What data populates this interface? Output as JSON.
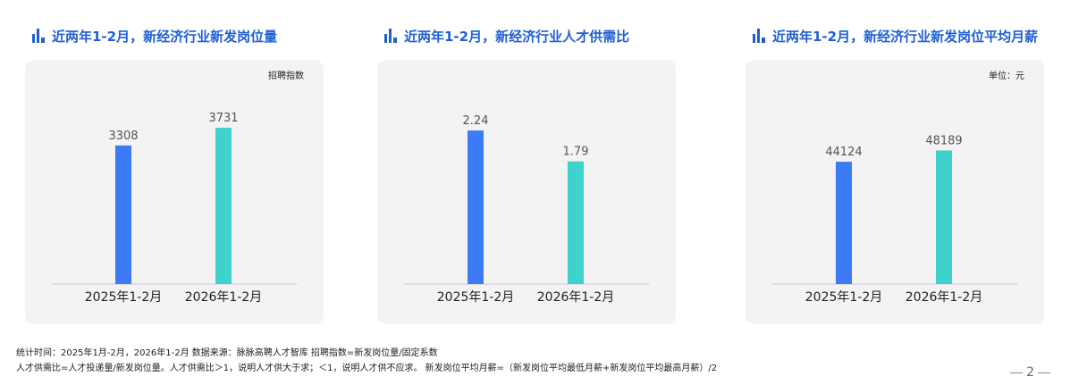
{
  "colors": {
    "bar_2025": "#3d7af5",
    "bar_2026": "#3dd2cc",
    "title": "#1f5fd6",
    "card": "#f3f3f3"
  },
  "title_icon": "bar-chart-icon",
  "chart_data": [
    {
      "type": "bar",
      "title": "近两年1-2月，新经济行业新发岗位量",
      "unit_label": "招聘指数",
      "categories": [
        "2025年1-2月",
        "2026年1-2月"
      ],
      "values": [
        3308,
        3731
      ],
      "value_labels": [
        "3308",
        "3731"
      ],
      "ylim": [
        0,
        4500
      ],
      "grid": false,
      "colors": [
        "#3d7af5",
        "#3dd2cc"
      ]
    },
    {
      "type": "bar",
      "title": "近两年1-2月，新经济行业人才供需比",
      "unit_label": "",
      "categories": [
        "2025年1-2月",
        "2026年1-2月"
      ],
      "values": [
        2.24,
        1.79
      ],
      "value_labels": [
        "2.24",
        "1.79"
      ],
      "ylim": [
        0,
        2.75
      ],
      "grid": false,
      "colors": [
        "#3d7af5",
        "#3dd2cc"
      ]
    },
    {
      "type": "bar",
      "title": "近两年1-2月，新经济行业新发岗位平均月薪",
      "unit_label": "单位：元",
      "categories": [
        "2025年1-2月",
        "2026年1-2月"
      ],
      "values": [
        44124,
        48189
      ],
      "value_labels": [
        "44124",
        "48189"
      ],
      "ylim": [
        0,
        68000
      ],
      "grid": false,
      "colors": [
        "#3d7af5",
        "#3dd2cc"
      ]
    }
  ],
  "footnotes": {
    "line1": "统计时间：2025年1月-2月，2026年1-2月     数据来源：脉脉高聘人才智库    招聘指数=新发岗位量/固定系数",
    "line2": "人才供需比=人才投递量/新发岗位量。人才供需比＞1，说明人才供大于求；＜1，说明人才供不应求。    新发岗位平均月薪=（新发岗位平均最低月薪+新发岗位平均最高月薪）/2"
  },
  "page_number": "2"
}
